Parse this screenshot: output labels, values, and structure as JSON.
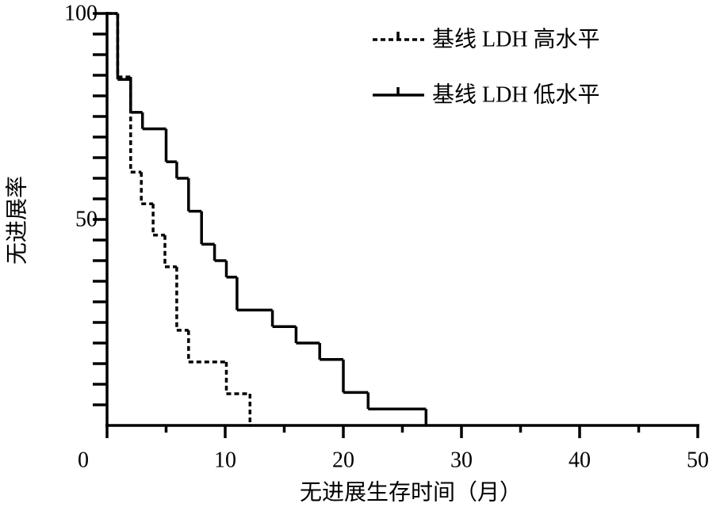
{
  "chart_data": {
    "type": "step",
    "x_label": "无进展生存时间（月）",
    "y_label": "无进展率",
    "xlim": [
      0,
      50
    ],
    "ylim": [
      0,
      100
    ],
    "xticks": [
      0,
      10,
      20,
      30,
      40,
      50
    ],
    "x_minor_ticks": [
      5,
      15,
      25,
      35,
      45
    ],
    "yticks": [
      50,
      100
    ],
    "y_minor_ticks": [
      5,
      10,
      15,
      20,
      25,
      30,
      35,
      40,
      45,
      55,
      60,
      65,
      70,
      75,
      80,
      85,
      90,
      95
    ],
    "legend": "top-right",
    "series": [
      {
        "name": "基线 LDH 高水平",
        "color": "#000000",
        "line_style": "dashed",
        "x": [
          0,
          0.9,
          2.0,
          2.9,
          3.9,
          4.9,
          5.9,
          6.9,
          10.1,
          12.1
        ],
        "values": [
          100,
          84.6,
          61.5,
          53.8,
          46.2,
          38.5,
          23.1,
          15.4,
          7.7,
          0
        ]
      },
      {
        "name": "基线 LDH 低水平",
        "color": "#000000",
        "line_style": "solid",
        "x": [
          0,
          0.9,
          2.0,
          3.0,
          5.0,
          5.9,
          6.9,
          8.0,
          9.1,
          10.1,
          11.0,
          14.0,
          16.0,
          18.0,
          20.0,
          22.1,
          27.0
        ],
        "values": [
          100,
          84,
          76,
          72,
          64,
          60,
          52,
          44,
          40,
          36,
          28,
          24,
          20,
          16,
          8,
          4,
          0
        ]
      }
    ]
  }
}
